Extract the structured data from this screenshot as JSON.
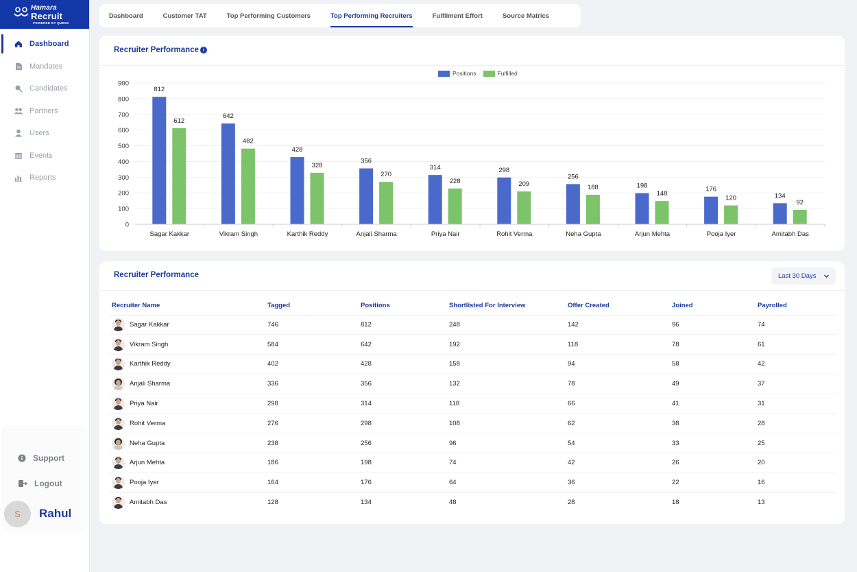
{
  "brand": {
    "line1": "Hamara",
    "line2": "Recruit",
    "tagline": "POWERED BY QUESS"
  },
  "sidebar": {
    "items": [
      {
        "label": "Dashboard",
        "icon": "home-icon",
        "active": true
      },
      {
        "label": "Mandates",
        "icon": "document-icon",
        "active": false
      },
      {
        "label": "Candidates",
        "icon": "search-user-icon",
        "active": false
      },
      {
        "label": "Partners",
        "icon": "group-icon",
        "active": false
      },
      {
        "label": "Users",
        "icon": "user-icon",
        "active": false
      },
      {
        "label": "Events",
        "icon": "calendar-icon",
        "active": false
      },
      {
        "label": "Reports",
        "icon": "bar-chart-icon",
        "active": false
      }
    ],
    "support_label": "Support",
    "logout_label": "Logout",
    "avatar_initial": "S",
    "user_name": "Rahul"
  },
  "tabs": [
    {
      "label": "Dashboard",
      "active": false
    },
    {
      "label": "Customer TAT",
      "active": false
    },
    {
      "label": "Top Performing Customers",
      "active": false
    },
    {
      "label": "Top Performing Recruiters",
      "active": true
    },
    {
      "label": "Fulfilment Effort",
      "active": false
    },
    {
      "label": "Source Matrics",
      "active": false
    }
  ],
  "chart_card": {
    "title": "Recruiter Performance",
    "info_icon": "info-icon"
  },
  "chart_data": {
    "type": "bar",
    "categories": [
      "Sagar Kakkar",
      "Vikram Singh",
      "Karthik Reddy",
      "Anjali Sharma",
      "Priya Nair",
      "Rohit Verma",
      "Neha Gupta",
      "Arjun Mehta",
      "Pooja Iyer",
      "Amitabh Das"
    ],
    "series": [
      {
        "name": "Positions",
        "color": "#4a6acb",
        "values": [
          812,
          642,
          428,
          356,
          314,
          298,
          256,
          198,
          176,
          134
        ]
      },
      {
        "name": "Fulfilled",
        "color": "#7cc36a",
        "values": [
          612,
          482,
          328,
          270,
          228,
          209,
          188,
          148,
          120,
          92
        ]
      }
    ],
    "yticks": [
      0,
      100,
      200,
      300,
      400,
      500,
      600,
      700,
      800,
      900
    ],
    "ylim": [
      0,
      900
    ],
    "legend_position": "top-center",
    "grid": true
  },
  "table_card": {
    "title": "Recruiter Performance",
    "period": "Last 30 Days",
    "columns": [
      "Recruiter Name",
      "Tagged",
      "Positions",
      "Shortlisted For Interview",
      "Offer Created",
      "Joined",
      "Payrolled"
    ],
    "rows": [
      {
        "name": "Sagar Kakkar",
        "gender": "m",
        "values": [
          "746",
          "812",
          "248",
          "142",
          "96",
          "74"
        ]
      },
      {
        "name": "Vikram Singh",
        "gender": "m",
        "values": [
          "584",
          "642",
          "192",
          "118",
          "78",
          "61"
        ]
      },
      {
        "name": "Karthik Reddy",
        "gender": "m",
        "values": [
          "402",
          "428",
          "158",
          "94",
          "58",
          "42"
        ]
      },
      {
        "name": "Anjali Sharma",
        "gender": "f",
        "values": [
          "336",
          "356",
          "132",
          "78",
          "49",
          "37"
        ]
      },
      {
        "name": "Priya Nair",
        "gender": "m",
        "values": [
          "298",
          "314",
          "118",
          "66",
          "41",
          "31"
        ]
      },
      {
        "name": "Rohit Verma",
        "gender": "m",
        "values": [
          "276",
          "298",
          "108",
          "62",
          "38",
          "28"
        ]
      },
      {
        "name": "Neha Gupta",
        "gender": "f",
        "values": [
          "238",
          "256",
          "96",
          "54",
          "33",
          "25"
        ]
      },
      {
        "name": "Arjun Mehta",
        "gender": "m",
        "values": [
          "186",
          "198",
          "74",
          "42",
          "26",
          "20"
        ]
      },
      {
        "name": "Pooja Iyer",
        "gender": "m",
        "values": [
          "164",
          "176",
          "64",
          "36",
          "22",
          "16"
        ]
      },
      {
        "name": "Amitabh Das",
        "gender": "m",
        "values": [
          "128",
          "134",
          "48",
          "28",
          "18",
          "13"
        ]
      }
    ]
  }
}
